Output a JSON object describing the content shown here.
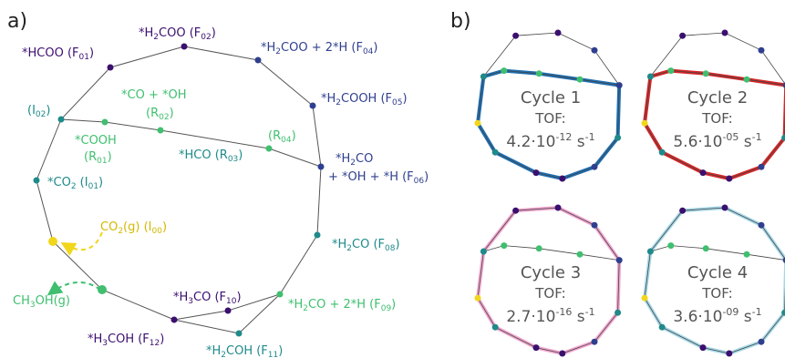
{
  "panels": {
    "a": {
      "label": "a)"
    },
    "b": {
      "label": "b)"
    }
  },
  "colors": {
    "purple": "#3b0f70",
    "blue": "#2f3f8f",
    "teal": "#1f8a8a",
    "green": "#3fbf6f",
    "yellow": "#f2d61b",
    "edge": "#555555",
    "cycle1": "#1f6fb2",
    "cycle2": "#d62728",
    "cycle3": "#f2a6cf",
    "cycle4": "#a6d8e8"
  },
  "network_a": {
    "nodes": [
      {
        "id": "F01",
        "label": "*HCOO (F01)",
        "color": "#3b0f70"
      },
      {
        "id": "F02",
        "label": "*H2COO (F02)",
        "color": "#3b0f70"
      },
      {
        "id": "F04",
        "label": "*H2COO + 2*H (F04)",
        "color": "#2f3f8f"
      },
      {
        "id": "F05",
        "label": "*H2COOH (F05)",
        "color": "#2f3f8f"
      },
      {
        "id": "I02",
        "label": "(I02)",
        "color": "#1f8a8a"
      },
      {
        "id": "R02",
        "label": "*CO + *OH (R02)",
        "color": "#3fbf6f"
      },
      {
        "id": "R01",
        "label": "*COOH (R01)",
        "color": "#3fbf6f"
      },
      {
        "id": "R03",
        "label": "*HCO (R03)",
        "color": "#1f8a8a"
      },
      {
        "id": "R04",
        "label": "(R04)",
        "color": "#3fbf6f"
      },
      {
        "id": "F06",
        "label": "*H2CO + *OH + *H (F06)",
        "color": "#2f3f8f"
      },
      {
        "id": "I01",
        "label": "*CO2 (I01)",
        "color": "#1f8a8a"
      },
      {
        "id": "I00",
        "label": "CO2(g) (I00)",
        "color": "#d4b800"
      },
      {
        "id": "F08",
        "label": "*H2CO (F08)",
        "color": "#1f8a8a"
      },
      {
        "id": "CH3OH",
        "label": "CH3OH(g)",
        "color": "#3fbf6f"
      },
      {
        "id": "F10",
        "label": "*H3CO (F10)",
        "color": "#3b0f70"
      },
      {
        "id": "F09",
        "label": "*H2CO + 2*H (F09)",
        "color": "#3fbf6f"
      },
      {
        "id": "F12",
        "label": "*H3COH (F12)",
        "color": "#3b0f70"
      },
      {
        "id": "F11",
        "label": "*H2COH (F11)",
        "color": "#1f8a8a"
      }
    ]
  },
  "cycles": [
    {
      "name": "Cycle 1",
      "tof_label": "TOF:",
      "tof_value": "4.2·10",
      "tof_exp": "-12",
      "tof_unit": " s",
      "tof_unit_exp": "-1"
    },
    {
      "name": "Cycle 2",
      "tof_label": "TOF:",
      "tof_value": "5.6·10",
      "tof_exp": "-05",
      "tof_unit": " s",
      "tof_unit_exp": "-1"
    },
    {
      "name": "Cycle 3",
      "tof_label": "TOF:",
      "tof_value": "2.7·10",
      "tof_exp": "-16",
      "tof_unit": " s",
      "tof_unit_exp": "-1"
    },
    {
      "name": "Cycle 4",
      "tof_label": "TOF:",
      "tof_value": "3.6·10",
      "tof_exp": "-09",
      "tof_unit": " s",
      "tof_unit_exp": "-1"
    }
  ]
}
